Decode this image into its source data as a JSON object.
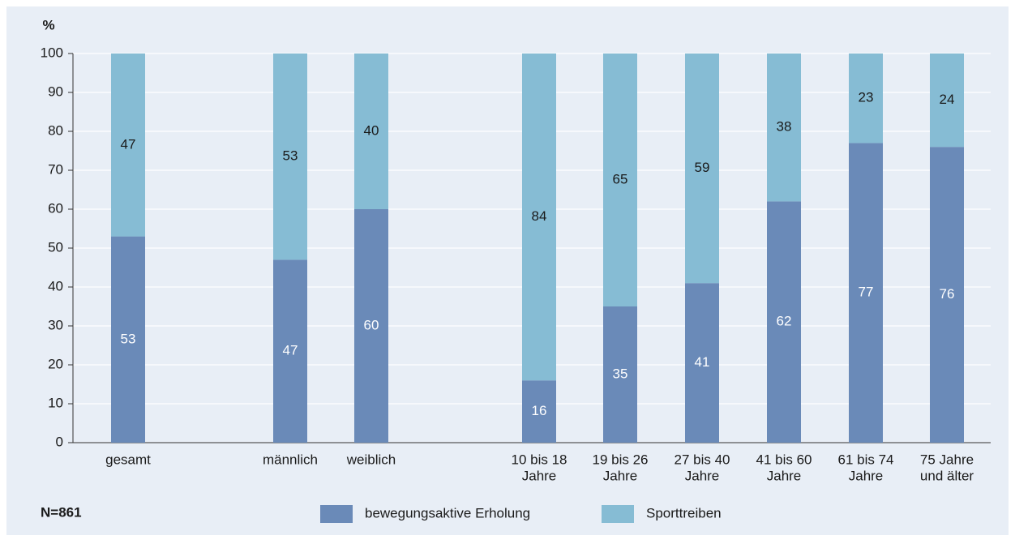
{
  "chart_data": {
    "type": "stacked_bar",
    "y_label": "%",
    "note": "N=861",
    "categories": [
      [
        "gesamt"
      ],
      [
        "männlich"
      ],
      [
        "weiblich"
      ],
      [
        "10 bis 18",
        "Jahre"
      ],
      [
        "19 bis 26",
        "Jahre"
      ],
      [
        "27 bis 40",
        "Jahre"
      ],
      [
        "41 bis 60",
        "Jahre"
      ],
      [
        "61 bis 74",
        "Jahre"
      ],
      [
        "75 Jahre",
        "und älter"
      ]
    ],
    "series": [
      {
        "name": "bewegungsaktive Erholung",
        "color": "#6a8ab8",
        "values": [
          53,
          47,
          60,
          16,
          35,
          41,
          62,
          77,
          76
        ]
      },
      {
        "name": "Sporttreiben",
        "color": "#86bcd4",
        "values": [
          47,
          53,
          40,
          84,
          65,
          59,
          38,
          23,
          24
        ]
      }
    ],
    "ylim": [
      0,
      100
    ],
    "yticks": [
      0,
      10,
      20,
      30,
      40,
      50,
      60,
      70,
      80,
      90,
      100
    ],
    "grid": true
  }
}
